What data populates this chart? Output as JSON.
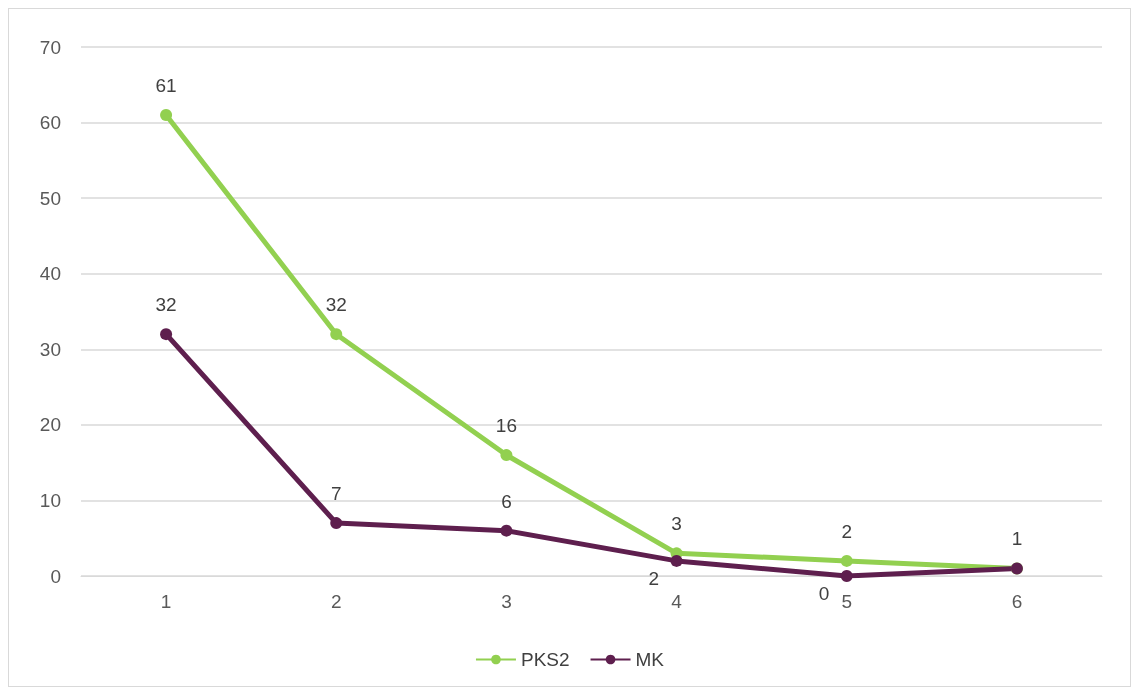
{
  "chart_data": {
    "type": "line",
    "categories": [
      "1",
      "2",
      "3",
      "4",
      "5",
      "6"
    ],
    "series": [
      {
        "name": "PKS2",
        "color": "#92d050",
        "values": [
          61,
          32,
          16,
          3,
          2,
          1
        ],
        "value_labels": [
          "61",
          "32",
          "16",
          "3",
          "2",
          "1"
        ]
      },
      {
        "name": "MK",
        "color": "#5e1f4e",
        "values": [
          32,
          7,
          6,
          2,
          0,
          1
        ],
        "value_labels": [
          "32",
          "7",
          "6",
          "2",
          "0",
          null
        ]
      }
    ],
    "ylim": [
      0,
      70
    ],
    "yticks": [
      0,
      10,
      20,
      30,
      40,
      50,
      60,
      70
    ],
    "grid": "y",
    "legend": "bottom",
    "marker": "circle",
    "line_style": "solid"
  }
}
